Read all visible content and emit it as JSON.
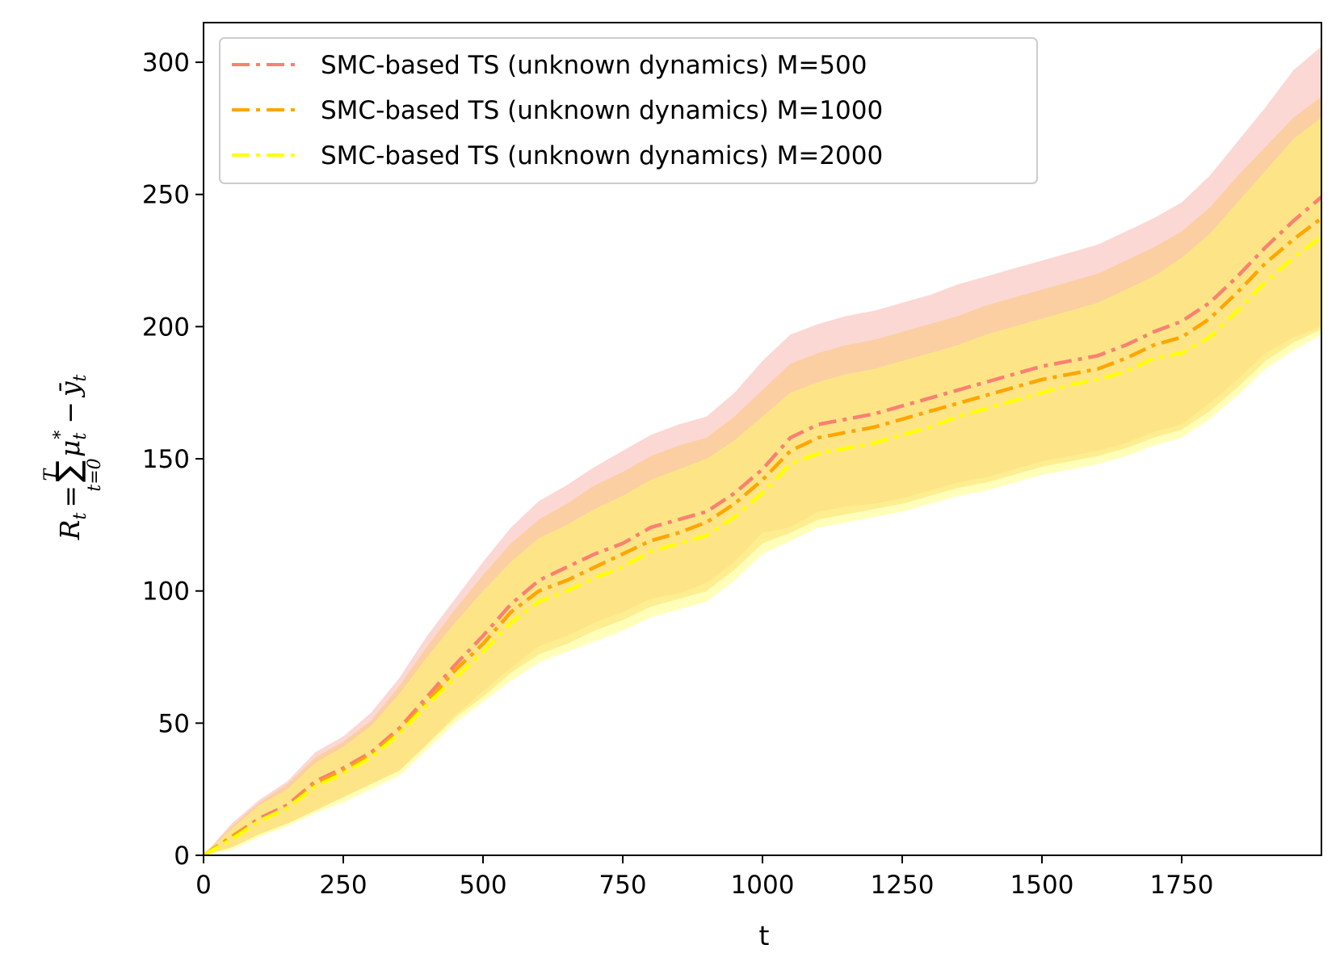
{
  "chart_data": {
    "type": "line",
    "title": "",
    "xlabel": "t",
    "ylabel": "R_t = Σ_{t=0}^{T} μ*_t − ȳ_t",
    "ylabel_parts": {
      "main_left": "R",
      "main_sub": "t",
      "equals": "=",
      "sum": "∑",
      "sum_upper": "T",
      "sum_lower": "t=0",
      "mu": "μ",
      "mu_sub": "t",
      "mu_sup": "*",
      "minus": "−",
      "y": "ȳ",
      "y_sub": "t"
    },
    "xlim": [
      0,
      2000
    ],
    "ylim": [
      0,
      315
    ],
    "xticks": [
      "0",
      "250",
      "500",
      "750",
      "1000",
      "1250",
      "1500",
      "1750"
    ],
    "xtick_values": [
      0,
      250,
      500,
      750,
      1000,
      1250,
      1500,
      1750
    ],
    "yticks": [
      "0",
      "50",
      "100",
      "150",
      "200",
      "250",
      "300"
    ],
    "ytick_values": [
      0,
      50,
      100,
      150,
      200,
      250,
      300
    ],
    "legend_position": "top-left",
    "x": [
      0,
      50,
      100,
      150,
      200,
      250,
      300,
      350,
      400,
      450,
      500,
      550,
      600,
      650,
      700,
      750,
      800,
      850,
      900,
      950,
      1000,
      1050,
      1100,
      1150,
      1200,
      1250,
      1300,
      1350,
      1400,
      1450,
      1500,
      1550,
      1600,
      1650,
      1700,
      1750,
      1800,
      1850,
      1900,
      1950,
      2000
    ],
    "series": [
      {
        "name": "SMC-based TS (unknown dynamics) M=500",
        "color": "#fa8072",
        "style": "dashdot",
        "values": [
          0,
          7,
          14,
          19,
          28,
          33,
          39,
          48,
          60,
          72,
          83,
          95,
          104,
          109,
          114,
          118,
          124,
          127,
          130,
          137,
          146,
          158,
          163,
          165,
          167,
          170,
          173,
          176,
          179,
          182,
          185,
          187,
          189,
          193,
          198,
          202,
          209,
          219,
          230,
          240,
          249
        ],
        "upper": [
          0,
          12,
          21,
          28,
          39,
          45,
          54,
          67,
          83,
          97,
          111,
          124,
          134,
          140,
          147,
          153,
          159,
          163,
          166,
          175,
          187,
          197,
          201,
          204,
          206,
          209,
          212,
          216,
          219,
          222,
          225,
          228,
          231,
          236,
          241,
          247,
          257,
          270,
          283,
          297,
          306
        ],
        "lower": [
          0,
          3,
          8,
          12,
          17,
          22,
          27,
          32,
          42,
          53,
          62,
          71,
          79,
          83,
          88,
          92,
          97,
          99,
          103,
          111,
          122,
          124,
          130,
          132,
          133,
          135,
          138,
          141,
          143,
          146,
          149,
          151,
          153,
          156,
          160,
          163,
          171,
          180,
          190,
          196,
          200
        ]
      },
      {
        "name": "SMC-based TS (unknown dynamics) M=1000",
        "color": "#ffa500",
        "style": "dashdot",
        "values": [
          0,
          7,
          13,
          18,
          27,
          32,
          38,
          47,
          58,
          70,
          80,
          92,
          100,
          104,
          109,
          114,
          119,
          122,
          126,
          133,
          142,
          153,
          158,
          160,
          162,
          165,
          168,
          171,
          174,
          177,
          180,
          182,
          184,
          188,
          193,
          196,
          203,
          213,
          224,
          233,
          241
        ],
        "upper": [
          0,
          11,
          20,
          27,
          37,
          43,
          51,
          64,
          79,
          93,
          106,
          118,
          127,
          133,
          140,
          145,
          151,
          155,
          158,
          166,
          176,
          186,
          190,
          193,
          195,
          198,
          201,
          204,
          208,
          211,
          214,
          217,
          220,
          225,
          230,
          236,
          245,
          257,
          268,
          279,
          287
        ],
        "lower": [
          0,
          3,
          8,
          12,
          17,
          22,
          27,
          32,
          42,
          52,
          60,
          69,
          76,
          80,
          85,
          89,
          94,
          97,
          100,
          108,
          118,
          122,
          127,
          129,
          131,
          133,
          136,
          139,
          141,
          144,
          147,
          149,
          151,
          154,
          158,
          161,
          168,
          177,
          187,
          194,
          199
        ]
      },
      {
        "name": "SMC-based TS (unknown dynamics) M=2000",
        "color": "#ffff00",
        "style": "dashdot",
        "values": [
          0,
          6,
          13,
          18,
          26,
          31,
          37,
          46,
          57,
          67,
          77,
          88,
          96,
          100,
          105,
          109,
          115,
          118,
          121,
          128,
          137,
          148,
          152,
          154,
          156,
          159,
          162,
          166,
          169,
          172,
          175,
          178,
          180,
          183,
          188,
          190,
          196,
          206,
          217,
          226,
          234
        ],
        "upper": [
          0,
          10,
          19,
          25,
          35,
          41,
          49,
          61,
          75,
          88,
          100,
          111,
          120,
          125,
          131,
          136,
          142,
          146,
          150,
          157,
          166,
          175,
          179,
          182,
          184,
          187,
          190,
          193,
          197,
          200,
          203,
          206,
          209,
          214,
          219,
          226,
          235,
          247,
          259,
          271,
          279
        ],
        "lower": [
          0,
          2,
          7,
          11,
          16,
          20,
          25,
          30,
          40,
          50,
          58,
          66,
          73,
          77,
          81,
          85,
          90,
          93,
          96,
          104,
          114,
          119,
          124,
          126,
          128,
          130,
          133,
          136,
          138,
          141,
          144,
          146,
          148,
          151,
          155,
          158,
          165,
          174,
          184,
          191,
          197
        ]
      }
    ]
  }
}
